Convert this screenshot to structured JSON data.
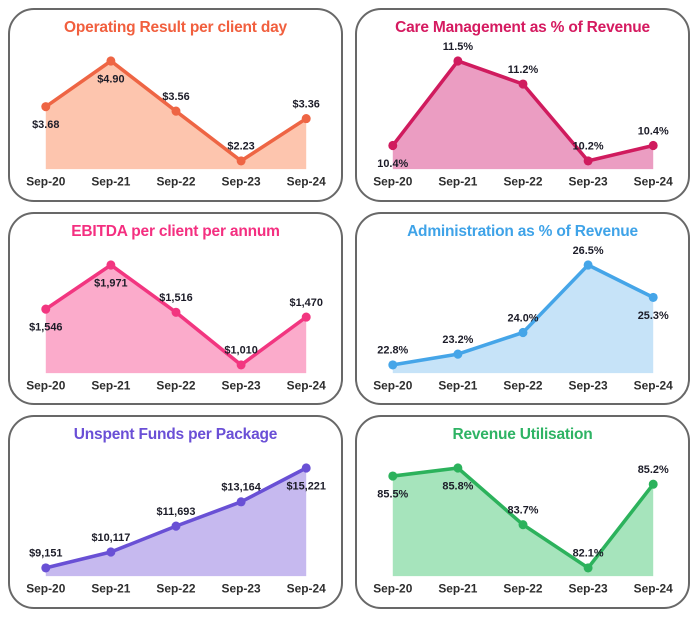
{
  "page": {
    "background_color": "#ffffff",
    "card_border_color": "#686868"
  },
  "x_categories": [
    "Sep-20",
    "Sep-21",
    "Sep-22",
    "Sep-23",
    "Sep-24"
  ],
  "chart_data": [
    {
      "type": "area",
      "title": "Operating Result per client day",
      "categories": [
        "Sep-20",
        "Sep-21",
        "Sep-22",
        "Sep-23",
        "Sep-24"
      ],
      "values": [
        3.68,
        4.9,
        3.56,
        2.23,
        3.36
      ],
      "labels": [
        "$3.68",
        "$4.90",
        "$3.56",
        "$2.23",
        "$3.36"
      ],
      "label_positions": [
        "below",
        "below",
        "above",
        "above",
        "above"
      ],
      "title_color": "#f15f3e",
      "line_color": "#ee6544",
      "fill_color": "#fdc5ae",
      "legend": "none",
      "grid": "off"
    },
    {
      "type": "area",
      "title": "Care Management as % of Revenue",
      "categories": [
        "Sep-20",
        "Sep-21",
        "Sep-22",
        "Sep-23",
        "Sep-24"
      ],
      "values": [
        10.4,
        11.5,
        11.2,
        10.2,
        10.4
      ],
      "labels": [
        "10.4%",
        "11.5%",
        "11.2%",
        "10.2%",
        "10.4%"
      ],
      "label_positions": [
        "below",
        "above",
        "above",
        "above",
        "above"
      ],
      "title_color": "#d51a60",
      "line_color": "#d01b5e",
      "fill_color": "#eb9dc2",
      "legend": "none",
      "grid": "off"
    },
    {
      "type": "area",
      "title": "EBITDA per client per annum",
      "categories": [
        "Sep-20",
        "Sep-21",
        "Sep-22",
        "Sep-23",
        "Sep-24"
      ],
      "values": [
        1546,
        1971,
        1516,
        1010,
        1470
      ],
      "labels": [
        "$1,546",
        "$1,971",
        "$1,516",
        "$1,010",
        "$1,470"
      ],
      "label_positions": [
        "below",
        "below",
        "above",
        "above",
        "above"
      ],
      "title_color": "#f42f80",
      "line_color": "#f23680",
      "fill_color": "#fbabcb",
      "legend": "none",
      "grid": "off"
    },
    {
      "type": "area",
      "title": "Administration as % of Revenue",
      "categories": [
        "Sep-20",
        "Sep-21",
        "Sep-22",
        "Sep-23",
        "Sep-24"
      ],
      "values": [
        22.8,
        23.2,
        24.0,
        26.5,
        25.3
      ],
      "labels": [
        "22.8%",
        "23.2%",
        "24.0%",
        "26.5%",
        "25.3%"
      ],
      "label_positions": [
        "above",
        "above",
        "above",
        "above",
        "below"
      ],
      "title_color": "#3fa3e8",
      "line_color": "#45a5e8",
      "fill_color": "#c6e3f8",
      "legend": "none",
      "grid": "off"
    },
    {
      "type": "area",
      "title": "Unspent Funds per Package",
      "categories": [
        "Sep-20",
        "Sep-21",
        "Sep-22",
        "Sep-23",
        "Sep-24"
      ],
      "values": [
        9151,
        10117,
        11693,
        13164,
        15221
      ],
      "labels": [
        "$9,151",
        "$10,117",
        "$11,693",
        "$13,164",
        "$15,221"
      ],
      "label_positions": [
        "above",
        "above",
        "above",
        "above",
        "below"
      ],
      "title_color": "#6a4fd6",
      "line_color": "#6950d5",
      "fill_color": "#c6b9ef",
      "legend": "none",
      "grid": "off"
    },
    {
      "type": "area",
      "title": "Revenue Utilisation",
      "categories": [
        "Sep-20",
        "Sep-21",
        "Sep-22",
        "Sep-23",
        "Sep-24"
      ],
      "values": [
        85.5,
        85.8,
        83.7,
        82.1,
        85.2
      ],
      "labels": [
        "85.5%",
        "85.8%",
        "83.7%",
        "82.1%",
        "85.2%"
      ],
      "label_positions": [
        "below",
        "below",
        "above",
        "above",
        "above"
      ],
      "title_color": "#2eb364",
      "line_color": "#2cb25c",
      "fill_color": "#a6e4bc",
      "legend": "none",
      "grid": "off"
    }
  ]
}
